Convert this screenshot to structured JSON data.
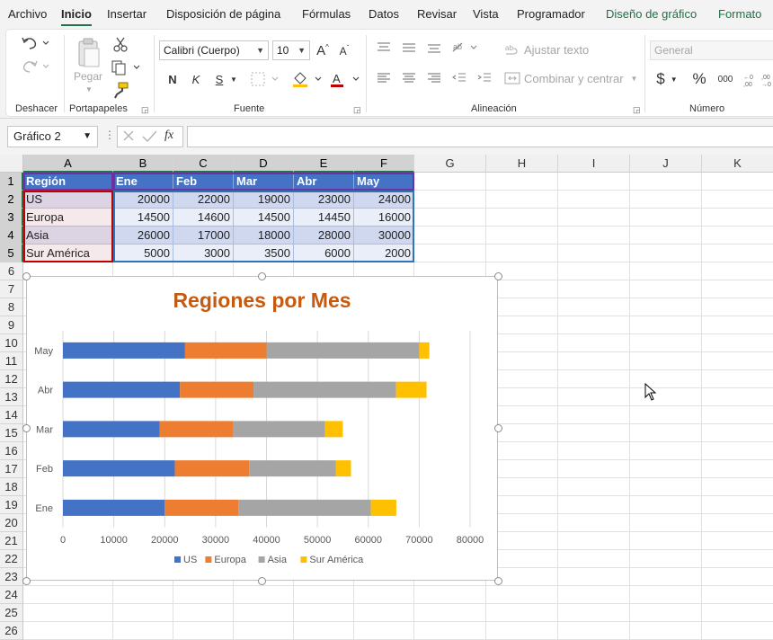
{
  "menu": {
    "tabs": [
      "Archivo",
      "Inicio",
      "Insertar",
      "Disposición de página",
      "Fórmulas",
      "Datos",
      "Revisar",
      "Vista",
      "Programador",
      "Diseño de gráfico",
      "Formato"
    ]
  },
  "ribbon": {
    "undo_group": "Deshacer",
    "clipboard_group": "Portapapeles",
    "paste_label": "Pegar",
    "font_group": "Fuente",
    "font_name": "Calibri (Cuerpo)",
    "font_size": "10",
    "bold": "N",
    "italic": "K",
    "underline": "S",
    "alignment_group": "Alineación",
    "wrap_text": "Ajustar texto",
    "merge_center": "Combinar y centrar",
    "number_group": "Número",
    "number_format": "General",
    "percent": "%",
    "thousands": "000"
  },
  "formula_bar": {
    "name_box": "Gráfico 2",
    "fx": "fx",
    "formula": ""
  },
  "sheet": {
    "columns": [
      "A",
      "B",
      "C",
      "D",
      "E",
      "F",
      "G",
      "H",
      "I",
      "J",
      "K"
    ],
    "rows": [
      "1",
      "2",
      "3",
      "4",
      "5",
      "6",
      "7",
      "8",
      "9",
      "10",
      "11",
      "12",
      "13",
      "14",
      "15",
      "16",
      "17",
      "18",
      "19",
      "20",
      "21",
      "22",
      "23",
      "24",
      "25",
      "26"
    ],
    "table": {
      "header": [
        "Región",
        "Ene",
        "Feb",
        "Mar",
        "Abr",
        "May"
      ],
      "rows": [
        [
          "US",
          "20000",
          "22000",
          "19000",
          "23000",
          "24000"
        ],
        [
          "Europa",
          "14500",
          "14600",
          "14500",
          "14450",
          "16000"
        ],
        [
          "Asia",
          "26000",
          "17000",
          "18000",
          "28000",
          "30000"
        ],
        [
          "Sur América",
          "5000",
          "3000",
          "3500",
          "6000",
          "2000"
        ]
      ]
    }
  },
  "chart_data": {
    "type": "bar",
    "orientation": "horizontal",
    "stacked": true,
    "title": "Regiones por Mes",
    "categories": [
      "Ene",
      "Feb",
      "Mar",
      "Abr",
      "May"
    ],
    "series": [
      {
        "name": "US",
        "values": [
          20000,
          22000,
          19000,
          23000,
          24000
        ],
        "color": "#4472c4"
      },
      {
        "name": "Europa",
        "values": [
          14500,
          14600,
          14500,
          14450,
          16000
        ],
        "color": "#ed7d31"
      },
      {
        "name": "Asia",
        "values": [
          26000,
          17000,
          18000,
          28000,
          30000
        ],
        "color": "#a5a5a5"
      },
      {
        "name": "Sur América",
        "values": [
          5000,
          3000,
          3500,
          6000,
          2000
        ],
        "color": "#ffc000"
      }
    ],
    "xlim": [
      0,
      80000
    ],
    "xticks": [
      "0",
      "10000",
      "20000",
      "30000",
      "40000",
      "50000",
      "60000",
      "70000",
      "80000"
    ],
    "grid": true,
    "legend": "bottom"
  },
  "colors": {
    "accent": "#217346",
    "title": "#c55a11",
    "table_header": "#4472c4"
  }
}
